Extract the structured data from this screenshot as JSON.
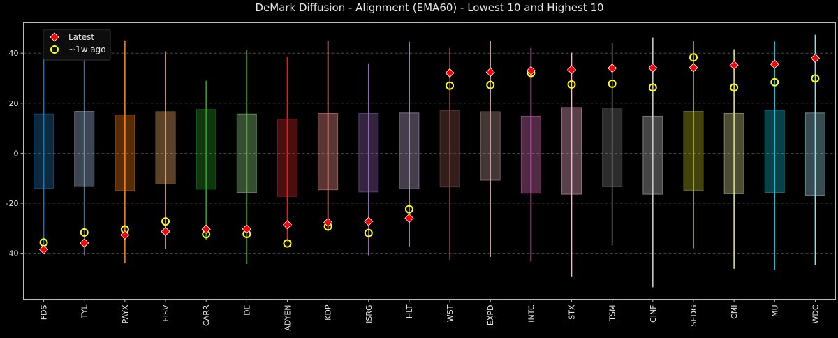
{
  "chart_data": {
    "type": "range-box",
    "title": "DeMark Diffusion - Alignment (EMA60) - Lowest 10 and Highest 10",
    "xlabel": "",
    "ylabel": "",
    "ylim": [
      -58.4,
      52.2
    ],
    "yticks": [
      -40,
      -20,
      0,
      20,
      40
    ],
    "grid": true,
    "legend_position": "top-left",
    "legend": [
      {
        "label": "Latest",
        "marker": "diamond",
        "color": "#ff0000"
      },
      {
        "label": "~1w ago",
        "marker": "circle-open",
        "color": "#ffff00"
      }
    ],
    "categories": [
      "FDS",
      "TYL",
      "PAYX",
      "FISV",
      "CARR",
      "DE",
      "ADYEN",
      "KDP",
      "ISRG",
      "HLT",
      "WST",
      "EXPD",
      "INTC",
      "STX",
      "TSM",
      "CINF",
      "SEDG",
      "CMI",
      "MU",
      "WDC"
    ],
    "colors": [
      "#1f77b4",
      "#aec7e8",
      "#ff7f0e",
      "#ffbb78",
      "#2ca02c",
      "#98df8a",
      "#d62728",
      "#ff9896",
      "#9467bd",
      "#c5b0d5",
      "#8c564b",
      "#c49c94",
      "#e377c2",
      "#f7b6d2",
      "#7f7f7f",
      "#c7c7c7",
      "#bcbd22",
      "#dbdb8d",
      "#17becf",
      "#9edae5"
    ],
    "whisker_min": [
      -38.0,
      -40.8,
      -44.0,
      -38.2,
      -34.7,
      -44.3,
      -35.5,
      -31.3,
      -40.8,
      -37.3,
      -42.6,
      -41.5,
      -43.3,
      -49.3,
      -36.8,
      -53.6,
      -38.0,
      -46.2,
      -46.6,
      -44.9
    ],
    "whisker_max": [
      44.1,
      44.6,
      45.1,
      40.7,
      29.0,
      41.3,
      38.6,
      44.9,
      35.9,
      44.6,
      42.1,
      44.9,
      42.1,
      40.2,
      44.2,
      46.3,
      44.9,
      41.6,
      44.7,
      47.4
    ],
    "box_low": [
      -14.0,
      -13.3,
      -15.0,
      -12.3,
      -14.4,
      -15.7,
      -17.3,
      -14.6,
      -15.5,
      -14.2,
      -13.5,
      -10.8,
      -16.0,
      -16.4,
      -13.4,
      -16.4,
      -14.8,
      -16.2,
      -15.7,
      -16.8
    ],
    "box_high": [
      15.7,
      16.7,
      15.3,
      16.6,
      17.5,
      15.7,
      13.6,
      15.9,
      15.9,
      16.1,
      17.0,
      16.6,
      14.8,
      18.3,
      18.1,
      14.8,
      16.7,
      15.9,
      17.2,
      16.1
    ],
    "series": [
      {
        "name": "Latest",
        "values": [
          -38.5,
          -35.9,
          -32.7,
          -31.3,
          -30.4,
          -30.3,
          -28.6,
          -27.7,
          -27.3,
          -26.0,
          32.1,
          32.4,
          33.0,
          33.4,
          34.0,
          34.1,
          34.2,
          35.2,
          35.6,
          38.0
        ]
      },
      {
        "name": "~1w ago",
        "values": [
          -35.7,
          -31.7,
          -30.5,
          -27.3,
          -32.4,
          -32.3,
          -36.1,
          -29.3,
          -31.9,
          -22.4,
          27.0,
          27.3,
          32.1,
          27.5,
          27.8,
          26.3,
          38.3,
          26.3,
          28.4,
          29.9
        ]
      }
    ]
  }
}
